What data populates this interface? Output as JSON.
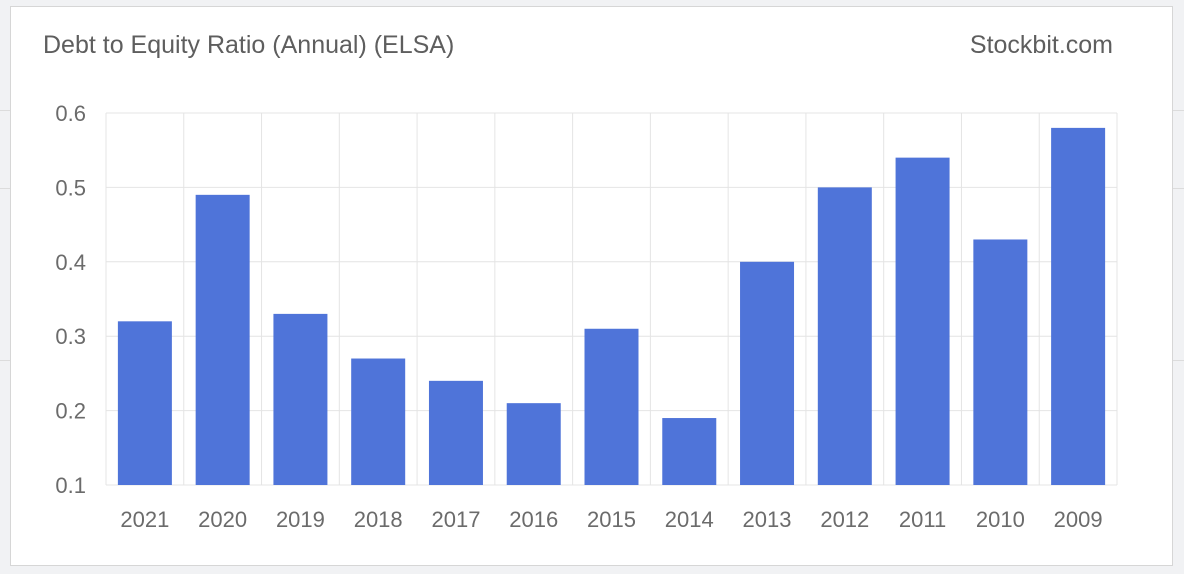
{
  "card": {
    "title": "Debt to Equity Ratio (Annual) (ELSA)",
    "brand": "Stockbit.com"
  },
  "chart_data": {
    "type": "bar",
    "title": "Debt to Equity Ratio (Annual) (ELSA)",
    "categories": [
      "2021",
      "2020",
      "2019",
      "2018",
      "2017",
      "2016",
      "2015",
      "2014",
      "2013",
      "2012",
      "2011",
      "2010",
      "2009"
    ],
    "values": [
      0.32,
      0.49,
      0.33,
      0.27,
      0.24,
      0.21,
      0.31,
      0.19,
      0.4,
      0.5,
      0.54,
      0.43,
      0.58
    ],
    "yticks": [
      "0.1",
      "0.2",
      "0.3",
      "0.4",
      "0.5",
      "0.6"
    ],
    "ylim": [
      0.1,
      0.6
    ],
    "xlabel": "",
    "ylabel": "",
    "grid": true,
    "legend": "none",
    "bar_color": "#4f74d9",
    "grid_color": "#e4e4e4"
  }
}
